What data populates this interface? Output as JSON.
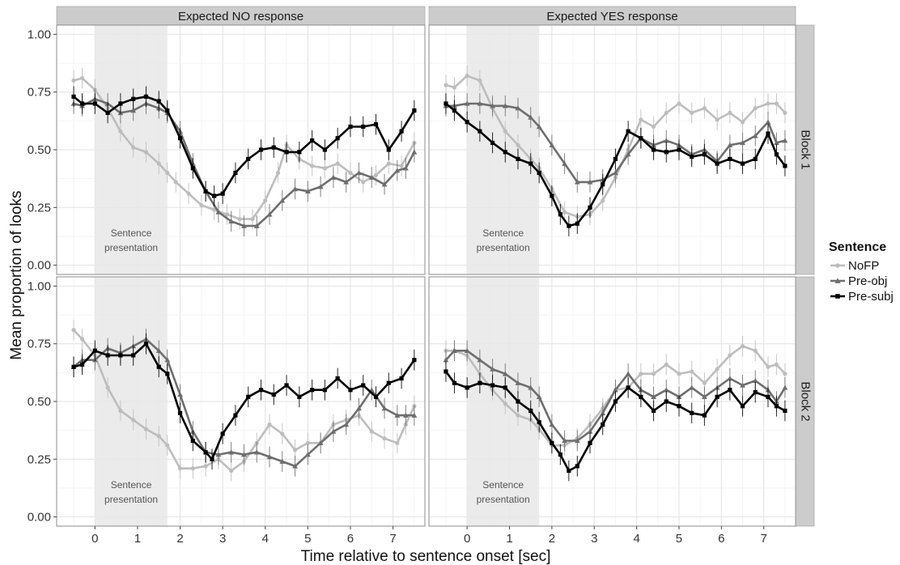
{
  "chart_data": {
    "type": "line",
    "ylabel": "Mean proportion of looks",
    "xlabel": "Time relative to sentence onset [sec]",
    "xlim": [
      -0.9,
      7.75
    ],
    "ylim": [
      -0.04,
      1.04
    ],
    "x_ticks": [
      0,
      1,
      2,
      3,
      4,
      5,
      6,
      7
    ],
    "y_ticks": [
      "0.00",
      "0.25",
      "0.50",
      "0.75",
      "1.00"
    ],
    "y_tick_values": [
      0,
      0.25,
      0.5,
      0.75,
      1.0
    ],
    "grid": true,
    "facet_columns": [
      "Expected NO response",
      "Expected YES response"
    ],
    "facet_rows": [
      "Block 1",
      "Block 2"
    ],
    "annotation": {
      "text_line1": "Sentence",
      "text_line2": "presentation",
      "x_start": 0,
      "x_end": 1.7
    },
    "legend": {
      "title": "Sentence",
      "position": "right",
      "entries": [
        "NoFP",
        "Pre-obj",
        "Pre-subj"
      ]
    },
    "colors": {
      "NoFP": "#bdbdbd",
      "Pre-obj": "#6e6e6e",
      "Pre-subj": "#000000",
      "strip": "#cccccc",
      "shade": "#e8e8e8"
    },
    "panels": [
      {
        "column": "Expected NO response",
        "row": "Block 1",
        "series": [
          {
            "name": "NoFP",
            "x": [
              -0.5,
              -0.3,
              0,
              0.3,
              0.6,
              0.9,
              1.2,
              1.5,
              1.7,
              1.9,
              2.2,
              2.5,
              2.8,
              3.1,
              3.4,
              3.7,
              4.0,
              4.3,
              4.5,
              4.8,
              5.1,
              5.4,
              5.7,
              6.0,
              6.3,
              6.6,
              6.9,
              7.2,
              7.5
            ],
            "y": [
              0.8,
              0.81,
              0.76,
              0.68,
              0.58,
              0.51,
              0.49,
              0.44,
              0.4,
              0.36,
              0.31,
              0.26,
              0.24,
              0.22,
              0.2,
              0.2,
              0.28,
              0.4,
              0.52,
              0.46,
              0.43,
              0.42,
              0.44,
              0.4,
              0.36,
              0.39,
              0.44,
              0.43,
              0.53
            ]
          },
          {
            "name": "Pre-obj",
            "x": [
              -0.5,
              -0.3,
              0,
              0.3,
              0.6,
              0.9,
              1.2,
              1.5,
              1.7,
              2.0,
              2.3,
              2.6,
              2.9,
              3.2,
              3.5,
              3.8,
              4.1,
              4.4,
              4.7,
              5.0,
              5.3,
              5.6,
              5.9,
              6.2,
              6.5,
              6.8,
              7.1,
              7.3,
              7.5
            ],
            "y": [
              0.7,
              0.69,
              0.72,
              0.7,
              0.66,
              0.67,
              0.7,
              0.68,
              0.66,
              0.58,
              0.44,
              0.32,
              0.23,
              0.19,
              0.17,
              0.17,
              0.22,
              0.28,
              0.33,
              0.32,
              0.34,
              0.38,
              0.36,
              0.4,
              0.38,
              0.35,
              0.41,
              0.42,
              0.49
            ]
          },
          {
            "name": "Pre-subj",
            "x": [
              -0.5,
              -0.3,
              0,
              0.3,
              0.6,
              0.9,
              1.2,
              1.5,
              1.7,
              2.0,
              2.3,
              2.6,
              2.8,
              3.0,
              3.3,
              3.6,
              3.9,
              4.2,
              4.5,
              4.8,
              5.1,
              5.4,
              5.7,
              6.0,
              6.3,
              6.6,
              6.9,
              7.2,
              7.5
            ],
            "y": [
              0.73,
              0.7,
              0.7,
              0.66,
              0.7,
              0.72,
              0.73,
              0.71,
              0.67,
              0.55,
              0.42,
              0.32,
              0.3,
              0.31,
              0.4,
              0.46,
              0.5,
              0.51,
              0.49,
              0.49,
              0.54,
              0.5,
              0.55,
              0.6,
              0.6,
              0.61,
              0.5,
              0.58,
              0.67
            ]
          }
        ]
      },
      {
        "column": "Expected YES response",
        "row": "Block 1",
        "series": [
          {
            "name": "NoFP",
            "x": [
              -0.5,
              -0.3,
              0,
              0.3,
              0.6,
              0.9,
              1.2,
              1.5,
              1.7,
              2.0,
              2.3,
              2.6,
              2.9,
              3.2,
              3.5,
              3.8,
              4.1,
              4.4,
              4.7,
              5.0,
              5.3,
              5.6,
              5.9,
              6.2,
              6.5,
              6.8,
              7.1,
              7.3,
              7.5
            ],
            "y": [
              0.78,
              0.77,
              0.82,
              0.8,
              0.68,
              0.58,
              0.52,
              0.46,
              0.42,
              0.33,
              0.23,
              0.21,
              0.22,
              0.28,
              0.38,
              0.5,
              0.63,
              0.6,
              0.66,
              0.7,
              0.66,
              0.68,
              0.63,
              0.66,
              0.62,
              0.68,
              0.7,
              0.7,
              0.66
            ]
          },
          {
            "name": "Pre-obj",
            "x": [
              -0.5,
              -0.3,
              0,
              0.3,
              0.6,
              0.9,
              1.2,
              1.5,
              1.7,
              2.0,
              2.3,
              2.6,
              2.9,
              3.2,
              3.5,
              3.8,
              4.1,
              4.4,
              4.7,
              5.0,
              5.3,
              5.6,
              5.9,
              6.2,
              6.5,
              6.8,
              7.1,
              7.3,
              7.5
            ],
            "y": [
              0.69,
              0.69,
              0.7,
              0.7,
              0.69,
              0.69,
              0.68,
              0.64,
              0.6,
              0.52,
              0.44,
              0.36,
              0.36,
              0.37,
              0.4,
              0.48,
              0.55,
              0.52,
              0.54,
              0.52,
              0.48,
              0.5,
              0.45,
              0.52,
              0.53,
              0.56,
              0.62,
              0.53,
              0.54
            ]
          },
          {
            "name": "Pre-subj",
            "x": [
              -0.5,
              -0.3,
              0,
              0.3,
              0.6,
              0.9,
              1.2,
              1.5,
              1.7,
              2.0,
              2.2,
              2.4,
              2.6,
              2.9,
              3.2,
              3.5,
              3.8,
              4.1,
              4.4,
              4.7,
              5.0,
              5.3,
              5.6,
              5.9,
              6.2,
              6.5,
              6.8,
              7.1,
              7.3,
              7.5
            ],
            "y": [
              0.7,
              0.67,
              0.62,
              0.58,
              0.53,
              0.49,
              0.46,
              0.44,
              0.4,
              0.3,
              0.22,
              0.17,
              0.18,
              0.25,
              0.35,
              0.46,
              0.58,
              0.55,
              0.5,
              0.49,
              0.5,
              0.47,
              0.48,
              0.44,
              0.46,
              0.44,
              0.46,
              0.57,
              0.48,
              0.43
            ]
          }
        ]
      },
      {
        "column": "Expected NO response",
        "row": "Block 2",
        "series": [
          {
            "name": "NoFP",
            "x": [
              -0.5,
              -0.3,
              0,
              0.3,
              0.6,
              0.9,
              1.2,
              1.5,
              1.7,
              2.0,
              2.3,
              2.6,
              2.9,
              3.2,
              3.5,
              3.8,
              4.1,
              4.4,
              4.7,
              5.0,
              5.3,
              5.6,
              5.9,
              6.2,
              6.5,
              6.8,
              7.1,
              7.3,
              7.5
            ],
            "y": [
              0.81,
              0.77,
              0.7,
              0.56,
              0.46,
              0.42,
              0.38,
              0.35,
              0.31,
              0.21,
              0.21,
              0.22,
              0.25,
              0.2,
              0.24,
              0.32,
              0.4,
              0.36,
              0.29,
              0.32,
              0.32,
              0.4,
              0.42,
              0.44,
              0.37,
              0.34,
              0.32,
              0.4,
              0.48
            ]
          },
          {
            "name": "Pre-obj",
            "x": [
              -0.5,
              -0.3,
              0,
              0.3,
              0.6,
              0.9,
              1.2,
              1.5,
              1.7,
              2.0,
              2.3,
              2.6,
              2.9,
              3.2,
              3.5,
              3.8,
              4.1,
              4.4,
              4.7,
              5.0,
              5.3,
              5.6,
              5.9,
              6.2,
              6.5,
              6.8,
              7.1,
              7.3,
              7.5
            ],
            "y": [
              0.65,
              0.68,
              0.68,
              0.73,
              0.71,
              0.74,
              0.77,
              0.72,
              0.68,
              0.53,
              0.37,
              0.28,
              0.27,
              0.28,
              0.27,
              0.28,
              0.26,
              0.24,
              0.22,
              0.27,
              0.32,
              0.37,
              0.4,
              0.47,
              0.55,
              0.47,
              0.44,
              0.44,
              0.44
            ]
          },
          {
            "name": "Pre-subj",
            "x": [
              -0.5,
              -0.3,
              0,
              0.3,
              0.6,
              0.9,
              1.2,
              1.5,
              1.7,
              2.0,
              2.3,
              2.6,
              2.75,
              3.0,
              3.3,
              3.6,
              3.9,
              4.2,
              4.5,
              4.8,
              5.1,
              5.4,
              5.7,
              6.0,
              6.3,
              6.6,
              6.9,
              7.2,
              7.5
            ],
            "y": [
              0.65,
              0.66,
              0.72,
              0.7,
              0.7,
              0.7,
              0.75,
              0.65,
              0.62,
              0.45,
              0.33,
              0.28,
              0.25,
              0.36,
              0.44,
              0.52,
              0.55,
              0.53,
              0.57,
              0.52,
              0.55,
              0.55,
              0.6,
              0.55,
              0.57,
              0.52,
              0.58,
              0.6,
              0.68
            ]
          }
        ]
      },
      {
        "column": "Expected YES response",
        "row": "Block 2",
        "series": [
          {
            "name": "NoFP",
            "x": [
              -0.5,
              -0.3,
              0,
              0.3,
              0.6,
              0.9,
              1.2,
              1.5,
              1.7,
              2.0,
              2.3,
              2.6,
              2.9,
              3.2,
              3.5,
              3.8,
              4.1,
              4.4,
              4.7,
              5.0,
              5.3,
              5.6,
              5.9,
              6.2,
              6.5,
              6.8,
              7.1,
              7.3,
              7.5
            ],
            "y": [
              0.72,
              0.72,
              0.7,
              0.62,
              0.55,
              0.49,
              0.44,
              0.42,
              0.38,
              0.31,
              0.31,
              0.34,
              0.4,
              0.47,
              0.55,
              0.56,
              0.62,
              0.62,
              0.66,
              0.62,
              0.63,
              0.58,
              0.64,
              0.7,
              0.74,
              0.72,
              0.65,
              0.66,
              0.62
            ]
          },
          {
            "name": "Pre-obj",
            "x": [
              -0.5,
              -0.3,
              0,
              0.3,
              0.6,
              0.9,
              1.2,
              1.5,
              1.7,
              2.0,
              2.3,
              2.6,
              2.9,
              3.2,
              3.5,
              3.8,
              4.1,
              4.4,
              4.7,
              5.0,
              5.3,
              5.6,
              5.9,
              6.2,
              6.5,
              6.8,
              7.1,
              7.3,
              7.5
            ],
            "y": [
              0.68,
              0.72,
              0.72,
              0.68,
              0.64,
              0.62,
              0.58,
              0.56,
              0.52,
              0.4,
              0.33,
              0.33,
              0.37,
              0.45,
              0.55,
              0.62,
              0.55,
              0.52,
              0.55,
              0.52,
              0.56,
              0.52,
              0.56,
              0.6,
              0.57,
              0.59,
              0.55,
              0.5,
              0.56
            ]
          },
          {
            "name": "Pre-subj",
            "x": [
              -0.5,
              -0.3,
              0,
              0.3,
              0.6,
              0.9,
              1.2,
              1.5,
              1.7,
              2.0,
              2.2,
              2.4,
              2.6,
              2.9,
              3.2,
              3.5,
              3.8,
              4.1,
              4.4,
              4.7,
              5.0,
              5.3,
              5.6,
              5.9,
              6.2,
              6.5,
              6.8,
              7.1,
              7.3,
              7.5
            ],
            "y": [
              0.63,
              0.58,
              0.56,
              0.58,
              0.57,
              0.56,
              0.5,
              0.46,
              0.41,
              0.32,
              0.27,
              0.2,
              0.22,
              0.32,
              0.4,
              0.5,
              0.56,
              0.52,
              0.46,
              0.5,
              0.48,
              0.45,
              0.44,
              0.52,
              0.55,
              0.48,
              0.54,
              0.52,
              0.48,
              0.46
            ]
          }
        ]
      }
    ]
  }
}
